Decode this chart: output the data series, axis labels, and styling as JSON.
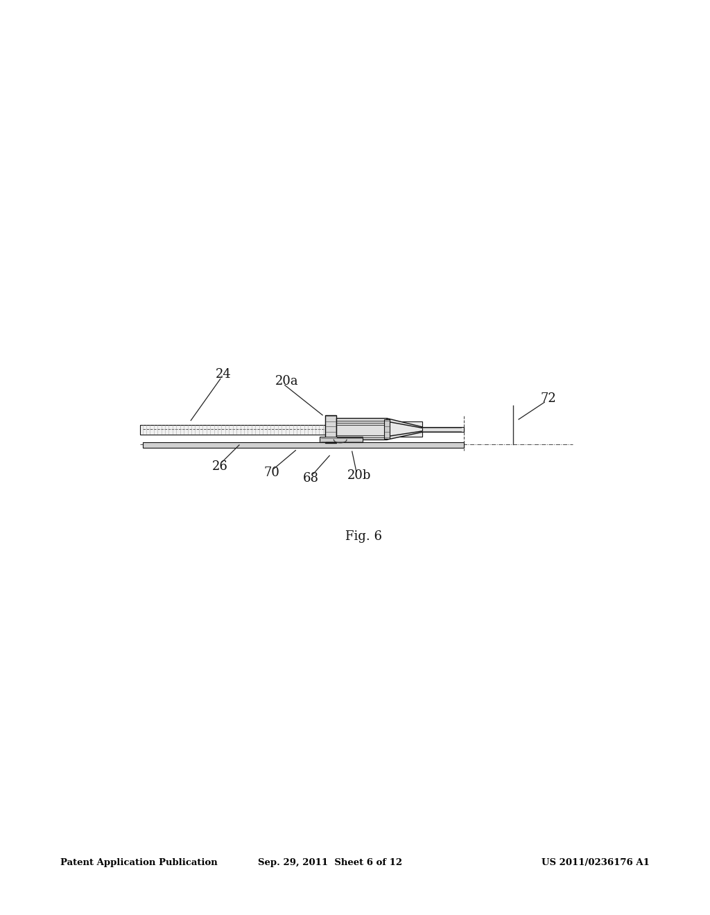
{
  "background_color": "#ffffff",
  "header_left": "Patent Application Publication",
  "header_center": "Sep. 29, 2011  Sheet 6 of 12",
  "header_right": "US 2011/0236176 A1",
  "fig_label": "Fig. 6"
}
